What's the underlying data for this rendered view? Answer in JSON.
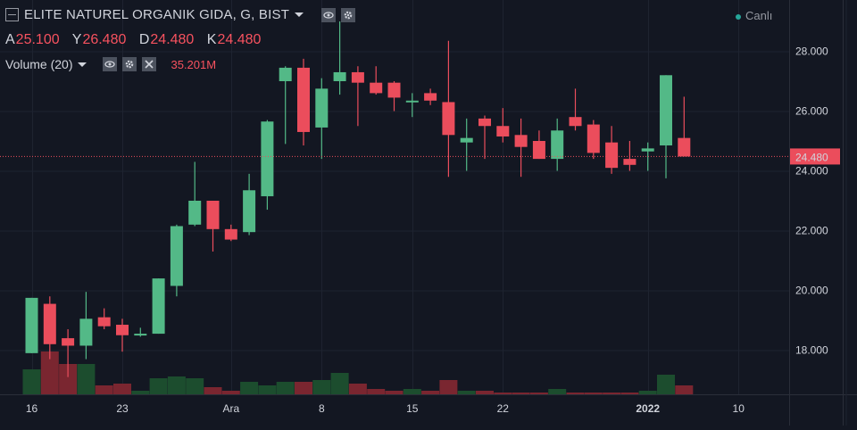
{
  "legend": {
    "title": "ELITE NATUREL ORGANIK GIDA, G, BIST",
    "ohlc": [
      {
        "key": "A",
        "value": "25.100"
      },
      {
        "key": "Y",
        "value": "26.480"
      },
      {
        "key": "D",
        "value": "24.480"
      },
      {
        "key": "K",
        "value": "24.480"
      }
    ],
    "volume_label": "Volume (20)",
    "volume_value": "35.201M"
  },
  "status": {
    "live_label": "Canlı"
  },
  "colors": {
    "up": "#53b987",
    "down": "#eb4d5c",
    "vol_up": "#1c4d2e",
    "vol_down": "#7a2630",
    "bg": "#131722",
    "grid": "#1e2330"
  },
  "chart_data": {
    "type": "candlestick",
    "y_ticks": [
      18,
      20,
      22,
      24,
      26,
      28
    ],
    "y_tick_labels": [
      "18.000",
      "20.000",
      "22.000",
      "24.000",
      "26.000",
      "28.000"
    ],
    "x_ticks": [
      {
        "index": 0,
        "label": "16",
        "bold": false
      },
      {
        "index": 5,
        "label": "23",
        "bold": false
      },
      {
        "index": 11,
        "label": "Ara",
        "bold": false
      },
      {
        "index": 16,
        "label": "8",
        "bold": false
      },
      {
        "index": 21,
        "label": "15",
        "bold": false
      },
      {
        "index": 26,
        "label": "22",
        "bold": false
      },
      {
        "index": 34,
        "label": "2022",
        "bold": true
      },
      {
        "index": 39,
        "label": "10",
        "bold": false
      }
    ],
    "last_price": 24.48,
    "last_price_label": "24.480",
    "candles": [
      {
        "o": 17.9,
        "h": 19.75,
        "l": 17.9,
        "c": 19.75,
        "v": 14
      },
      {
        "o": 19.55,
        "h": 19.8,
        "l": 17.7,
        "c": 18.2,
        "v": 24
      },
      {
        "o": 18.4,
        "h": 18.7,
        "l": 17.1,
        "c": 18.15,
        "v": 17
      },
      {
        "o": 18.15,
        "h": 19.95,
        "l": 17.7,
        "c": 19.05,
        "v": 17
      },
      {
        "o": 19.1,
        "h": 19.4,
        "l": 18.7,
        "c": 18.8,
        "v": 5
      },
      {
        "o": 18.85,
        "h": 19.05,
        "l": 17.95,
        "c": 18.5,
        "v": 6
      },
      {
        "o": 18.5,
        "h": 18.75,
        "l": 18.45,
        "c": 18.55,
        "v": 2
      },
      {
        "o": 18.55,
        "h": 20.4,
        "l": 18.55,
        "c": 20.4,
        "v": 9
      },
      {
        "o": 20.15,
        "h": 22.2,
        "l": 19.8,
        "c": 22.15,
        "v": 10
      },
      {
        "o": 22.2,
        "h": 24.3,
        "l": 22.15,
        "c": 23.0,
        "v": 9
      },
      {
        "o": 23.0,
        "h": 23.0,
        "l": 21.3,
        "c": 22.05,
        "v": 4
      },
      {
        "o": 22.05,
        "h": 22.2,
        "l": 21.65,
        "c": 21.7,
        "v": 2
      },
      {
        "o": 21.95,
        "h": 23.9,
        "l": 21.85,
        "c": 23.35,
        "v": 7
      },
      {
        "o": 23.15,
        "h": 25.7,
        "l": 22.7,
        "c": 25.65,
        "v": 5
      },
      {
        "o": 27.0,
        "h": 27.5,
        "l": 24.9,
        "c": 27.45,
        "v": 7
      },
      {
        "o": 27.45,
        "h": 27.75,
        "l": 24.85,
        "c": 25.3,
        "v": 7
      },
      {
        "o": 25.45,
        "h": 27.1,
        "l": 24.4,
        "c": 26.75,
        "v": 8
      },
      {
        "o": 27.0,
        "h": 29.0,
        "l": 26.55,
        "c": 27.3,
        "v": 12
      },
      {
        "o": 27.3,
        "h": 27.5,
        "l": 25.5,
        "c": 26.95,
        "v": 6
      },
      {
        "o": 26.95,
        "h": 27.5,
        "l": 26.55,
        "c": 26.6,
        "v": 3
      },
      {
        "o": 26.95,
        "h": 27.0,
        "l": 26.0,
        "c": 26.45,
        "v": 2
      },
      {
        "o": 26.35,
        "h": 26.6,
        "l": 25.8,
        "c": 26.35,
        "v": 3
      },
      {
        "o": 26.6,
        "h": 26.75,
        "l": 26.2,
        "c": 26.35,
        "v": 2
      },
      {
        "o": 26.3,
        "h": 28.35,
        "l": 23.8,
        "c": 25.2,
        "v": 8
      },
      {
        "o": 24.95,
        "h": 25.75,
        "l": 24.0,
        "c": 25.1,
        "v": 2
      },
      {
        "o": 25.75,
        "h": 25.85,
        "l": 24.4,
        "c": 25.5,
        "v": 2
      },
      {
        "o": 25.5,
        "h": 26.1,
        "l": 24.95,
        "c": 25.15,
        "v": 1
      },
      {
        "o": 25.2,
        "h": 25.75,
        "l": 23.8,
        "c": 24.8,
        "v": 1
      },
      {
        "o": 25.0,
        "h": 25.35,
        "l": 24.4,
        "c": 24.4,
        "v": 1
      },
      {
        "o": 24.4,
        "h": 25.75,
        "l": 24.0,
        "c": 25.35,
        "v": 3
      },
      {
        "o": 25.8,
        "h": 26.75,
        "l": 25.35,
        "c": 25.5,
        "v": 1
      },
      {
        "o": 25.55,
        "h": 25.7,
        "l": 24.4,
        "c": 24.6,
        "v": 1
      },
      {
        "o": 24.95,
        "h": 25.5,
        "l": 23.9,
        "c": 24.1,
        "v": 1
      },
      {
        "o": 24.4,
        "h": 25.0,
        "l": 24.0,
        "c": 24.2,
        "v": 1
      },
      {
        "o": 24.65,
        "h": 24.95,
        "l": 24.0,
        "c": 24.75,
        "v": 2
      },
      {
        "o": 24.85,
        "h": 27.2,
        "l": 23.75,
        "c": 27.2,
        "v": 11
      },
      {
        "o": 25.1,
        "h": 26.48,
        "l": 24.48,
        "c": 24.48,
        "v": 5
      }
    ]
  }
}
